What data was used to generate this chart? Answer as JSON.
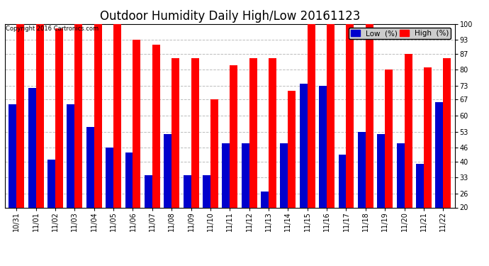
{
  "title": "Outdoor Humidity Daily High/Low 20161123",
  "copyright": "Copyright 2016 Cartronics.com",
  "categories": [
    "10/31",
    "11/01",
    "11/02",
    "11/03",
    "11/04",
    "11/05",
    "11/06",
    "11/07",
    "11/08",
    "11/09",
    "11/10",
    "11/11",
    "11/12",
    "11/13",
    "11/14",
    "11/15",
    "11/16",
    "11/17",
    "11/18",
    "11/19",
    "11/20",
    "11/21",
    "11/22"
  ],
  "high": [
    100,
    100,
    98,
    100,
    100,
    100,
    93,
    91,
    85,
    85,
    67,
    82,
    85,
    85,
    71,
    100,
    100,
    100,
    100,
    80,
    87,
    81,
    85
  ],
  "low": [
    65,
    72,
    41,
    65,
    55,
    46,
    44,
    34,
    52,
    34,
    34,
    48,
    48,
    27,
    48,
    74,
    73,
    43,
    53,
    52,
    48,
    39,
    66
  ],
  "high_color": "#ff0000",
  "low_color": "#0000cc",
  "bg_color": "#ffffff",
  "plot_bg_color": "#ffffff",
  "grid_color": "#aaaaaa",
  "yticks": [
    20,
    26,
    33,
    40,
    46,
    53,
    60,
    67,
    73,
    80,
    87,
    93,
    100
  ],
  "ymin": 20,
  "ymax": 100,
  "bar_width": 0.4,
  "title_fontsize": 12,
  "tick_fontsize": 7,
  "legend_fontsize": 7.5
}
